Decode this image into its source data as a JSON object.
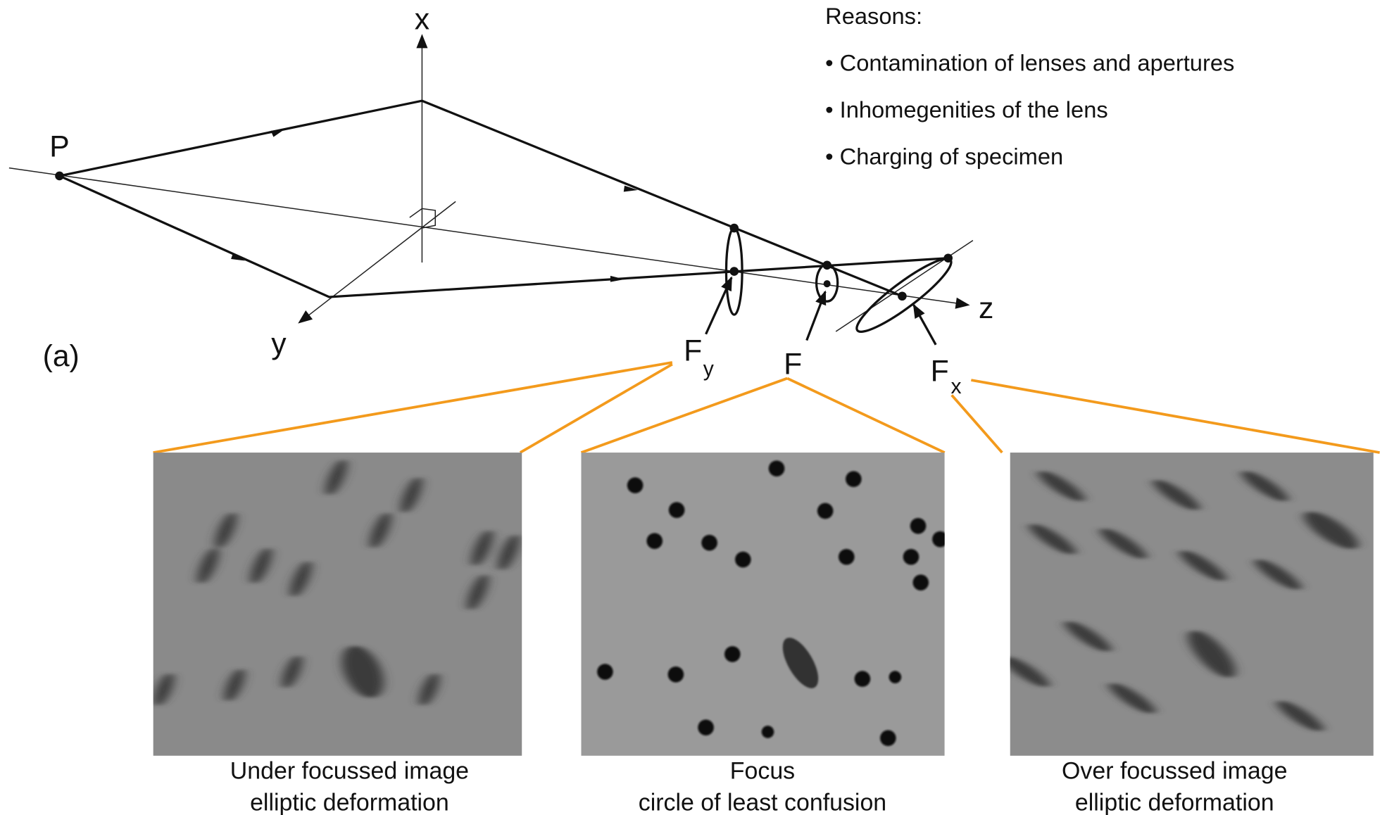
{
  "diagram": {
    "panel_label": "(a)",
    "point_label": "P",
    "axes": {
      "x": "x",
      "y": "y",
      "z": "z"
    },
    "foci": {
      "fy": {
        "main": "F",
        "sub": "y"
      },
      "f": {
        "main": "F"
      },
      "fx": {
        "main": "F",
        "sub": "x"
      }
    },
    "reasons": {
      "title": "Reasons:",
      "items": [
        "• Contamination of lenses and apertures",
        "• Inhomegenities of the lens",
        "• Charging of specimen"
      ]
    },
    "panels": [
      {
        "caption": [
          "Under focussed image",
          "elliptic deformation"
        ]
      },
      {
        "caption": [
          "Focus",
          "circle of least confusion"
        ]
      },
      {
        "caption": [
          "Over focussed image",
          "elliptic deformation"
        ]
      }
    ]
  }
}
